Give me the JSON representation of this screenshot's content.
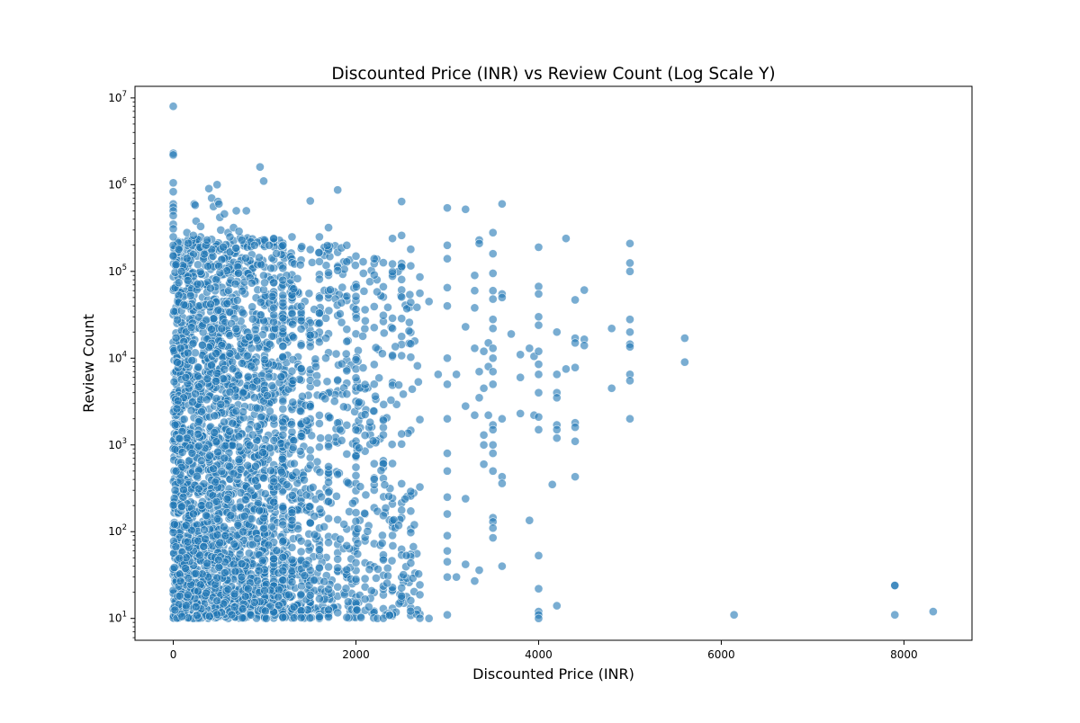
{
  "chart_data": {
    "type": "scatter",
    "title": "Discounted Price (INR) vs Review Count (Log Scale Y)",
    "xlabel": "Discounted Price (INR)",
    "ylabel": "Review Count",
    "y_scale": "log",
    "xlim": [
      -419,
      8745
    ],
    "ylim": [
      5.6,
      13600000
    ],
    "x_ticks": [
      {
        "value": 0,
        "label": "0"
      },
      {
        "value": 2000,
        "label": "2000"
      },
      {
        "value": 4000,
        "label": "4000"
      },
      {
        "value": 6000,
        "label": "6000"
      },
      {
        "value": 8000,
        "label": "8000"
      }
    ],
    "y_ticks": [
      {
        "value": 10,
        "base": "10",
        "exp": "1"
      },
      {
        "value": 100,
        "base": "10",
        "exp": "2"
      },
      {
        "value": 1000,
        "base": "10",
        "exp": "3"
      },
      {
        "value": 10000,
        "base": "10",
        "exp": "4"
      },
      {
        "value": 100000,
        "base": "10",
        "exp": "5"
      },
      {
        "value": 1000000,
        "base": "10",
        "exp": "6"
      },
      {
        "value": 10000000,
        "base": "10",
        "exp": "7"
      }
    ],
    "grid": false,
    "legend": "none",
    "marker_color": "#1f77b4",
    "point_clusters": [
      {
        "x_range": [
          0,
          1300
        ],
        "y_range": [
          10,
          250000
        ],
        "count": 2600
      },
      {
        "x_range": [
          1300,
          2000
        ],
        "y_range": [
          10,
          200000
        ],
        "count": 500
      },
      {
        "x_range": [
          2000,
          2700
        ],
        "y_range": [
          10,
          150000
        ],
        "count": 300
      }
    ],
    "points": [
      [
        0,
        8000000
      ],
      [
        0,
        2300000
      ],
      [
        0,
        2200000
      ],
      [
        0,
        1050000
      ],
      [
        0,
        830000
      ],
      [
        0,
        600000
      ],
      [
        0,
        550000
      ],
      [
        0,
        500000
      ],
      [
        0,
        440000
      ],
      [
        0,
        350000
      ],
      [
        0,
        310000
      ],
      [
        0,
        250000
      ],
      [
        0,
        200000
      ],
      [
        0,
        150000
      ],
      [
        30,
        120000
      ],
      [
        60,
        180000
      ],
      [
        90,
        100000
      ],
      [
        150,
        280000
      ],
      [
        220,
        260000
      ],
      [
        230,
        600000
      ],
      [
        240,
        580000
      ],
      [
        250,
        380000
      ],
      [
        300,
        330000
      ],
      [
        370,
        230000
      ],
      [
        390,
        900000
      ],
      [
        420,
        700000
      ],
      [
        440,
        560000
      ],
      [
        480,
        1000000
      ],
      [
        490,
        640000
      ],
      [
        500,
        600000
      ],
      [
        510,
        420000
      ],
      [
        520,
        300000
      ],
      [
        560,
        460000
      ],
      [
        600,
        280000
      ],
      [
        620,
        250000
      ],
      [
        660,
        320000
      ],
      [
        690,
        500000
      ],
      [
        720,
        290000
      ],
      [
        750,
        230000
      ],
      [
        800,
        500000
      ],
      [
        850,
        220000
      ],
      [
        890,
        200000
      ],
      [
        950,
        1600000
      ],
      [
        990,
        1100000
      ],
      [
        1000,
        230000
      ],
      [
        1050,
        200000
      ],
      [
        1100,
        240000
      ],
      [
        1200,
        200000
      ],
      [
        1300,
        250000
      ],
      [
        1500,
        650000
      ],
      [
        1600,
        250000
      ],
      [
        1700,
        320000
      ],
      [
        1800,
        870000
      ],
      [
        1900,
        200000
      ],
      [
        2000,
        150000
      ],
      [
        2200,
        140000
      ],
      [
        2400,
        240000
      ],
      [
        2500,
        640000
      ],
      [
        2500,
        260000
      ],
      [
        2600,
        180000
      ],
      [
        2800,
        45000
      ],
      [
        2900,
        6500
      ],
      [
        2800,
        10
      ],
      [
        3000,
        540000
      ],
      [
        3000,
        200000
      ],
      [
        3000,
        140000
      ],
      [
        3000,
        65000
      ],
      [
        3000,
        40000
      ],
      [
        3000,
        10000
      ],
      [
        3000,
        5000
      ],
      [
        3000,
        2000
      ],
      [
        3000,
        800
      ],
      [
        3000,
        500
      ],
      [
        3000,
        250
      ],
      [
        3000,
        160
      ],
      [
        3000,
        90
      ],
      [
        3000,
        60
      ],
      [
        3000,
        45
      ],
      [
        3000,
        30
      ],
      [
        3000,
        11
      ],
      [
        3100,
        6500
      ],
      [
        3100,
        30
      ],
      [
        3200,
        520000
      ],
      [
        3200,
        23000
      ],
      [
        3200,
        2800
      ],
      [
        3200,
        240
      ],
      [
        3200,
        42
      ],
      [
        3300,
        90000
      ],
      [
        3300,
        60000
      ],
      [
        3300,
        38000
      ],
      [
        3300,
        13000
      ],
      [
        3300,
        2200
      ],
      [
        3300,
        27
      ],
      [
        3350,
        230000
      ],
      [
        3350,
        210000
      ],
      [
        3350,
        7000
      ],
      [
        3350,
        3500
      ],
      [
        3350,
        36
      ],
      [
        3400,
        12000
      ],
      [
        3400,
        4500
      ],
      [
        3400,
        1300
      ],
      [
        3400,
        1000
      ],
      [
        3400,
        600
      ],
      [
        3450,
        15000
      ],
      [
        3450,
        8000
      ],
      [
        3450,
        2200
      ],
      [
        3500,
        280000
      ],
      [
        3500,
        160000
      ],
      [
        3500,
        95000
      ],
      [
        3500,
        60000
      ],
      [
        3500,
        48000
      ],
      [
        3500,
        28000
      ],
      [
        3500,
        22000
      ],
      [
        3500,
        13000
      ],
      [
        3500,
        10000
      ],
      [
        3500,
        7000
      ],
      [
        3500,
        5000
      ],
      [
        3500,
        1700
      ],
      [
        3500,
        1500
      ],
      [
        3500,
        1000
      ],
      [
        3500,
        800
      ],
      [
        3500,
        500
      ],
      [
        3500,
        145
      ],
      [
        3500,
        130
      ],
      [
        3500,
        110
      ],
      [
        3500,
        85
      ],
      [
        3600,
        600000
      ],
      [
        3600,
        55000
      ],
      [
        3600,
        50000
      ],
      [
        3600,
        40
      ],
      [
        3600,
        2000
      ],
      [
        3600,
        430
      ],
      [
        3600,
        360
      ],
      [
        3700,
        19000
      ],
      [
        3800,
        11000
      ],
      [
        3800,
        6000
      ],
      [
        3800,
        2300
      ],
      [
        3900,
        13000
      ],
      [
        3900,
        135
      ],
      [
        3950,
        10500
      ],
      [
        3950,
        2200
      ],
      [
        4000,
        190000
      ],
      [
        4000,
        67000
      ],
      [
        4000,
        55000
      ],
      [
        4000,
        30000
      ],
      [
        4000,
        24000
      ],
      [
        4000,
        12000
      ],
      [
        4000,
        8500
      ],
      [
        4000,
        6500
      ],
      [
        4000,
        4000
      ],
      [
        4000,
        2100
      ],
      [
        4000,
        1500
      ],
      [
        4000,
        53
      ],
      [
        4000,
        22
      ],
      [
        4000,
        12
      ],
      [
        4000,
        11
      ],
      [
        4000,
        10
      ],
      [
        4150,
        350
      ],
      [
        4200,
        20000
      ],
      [
        4200,
        6500
      ],
      [
        4200,
        4000
      ],
      [
        4200,
        3500
      ],
      [
        4200,
        1700
      ],
      [
        4200,
        1500
      ],
      [
        4200,
        1200
      ],
      [
        4200,
        14
      ],
      [
        4300,
        240000
      ],
      [
        4300,
        7500
      ],
      [
        4400,
        47000
      ],
      [
        4400,
        17000
      ],
      [
        4400,
        15000
      ],
      [
        4400,
        7800
      ],
      [
        4400,
        1800
      ],
      [
        4400,
        1600
      ],
      [
        4400,
        1100
      ],
      [
        4400,
        430
      ],
      [
        4500,
        61000
      ],
      [
        4500,
        16500
      ],
      [
        4500,
        14000
      ],
      [
        4800,
        22000
      ],
      [
        4800,
        4500
      ],
      [
        5000,
        210000
      ],
      [
        5000,
        125000
      ],
      [
        5000,
        100000
      ],
      [
        5000,
        28000
      ],
      [
        5000,
        20000
      ],
      [
        5000,
        14500
      ],
      [
        5000,
        13500
      ],
      [
        5000,
        6500
      ],
      [
        5000,
        5500
      ],
      [
        5000,
        2000
      ],
      [
        5600,
        17000
      ],
      [
        5600,
        9000
      ],
      [
        6140,
        11
      ],
      [
        7900,
        24
      ],
      [
        7900,
        24
      ],
      [
        7900,
        11
      ],
      [
        8320,
        12
      ]
    ]
  }
}
